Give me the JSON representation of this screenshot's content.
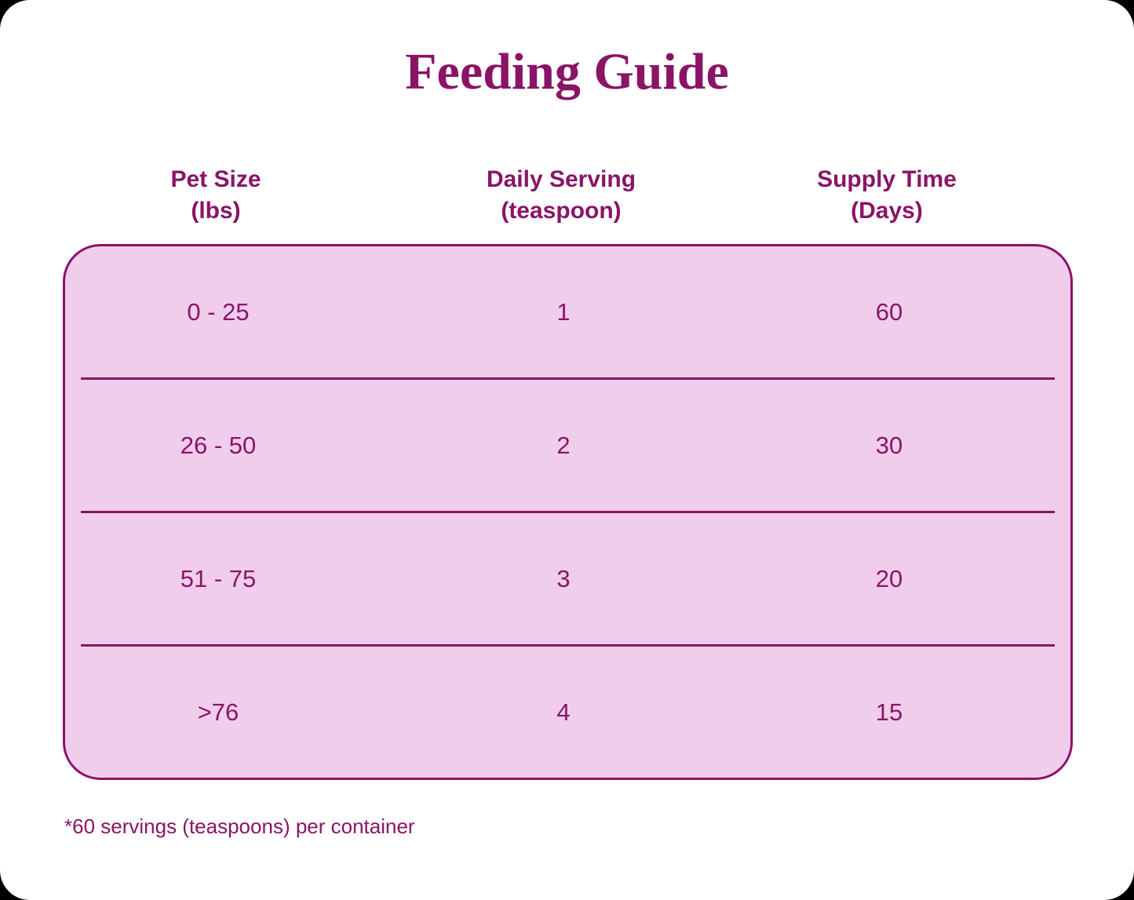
{
  "title": "Feeding Guide",
  "colors": {
    "accent": "#8A1466",
    "table_fill": "#F1CDEC",
    "card_bg": "#FFFFFF"
  },
  "table": {
    "columns": [
      {
        "line1": "Pet Size",
        "line2": "(lbs)"
      },
      {
        "line1": "Daily Serving",
        "line2": "(teaspoon)"
      },
      {
        "line1": "Supply Time",
        "line2": "(Days)"
      }
    ],
    "rows": [
      {
        "pet_size": "0 - 25",
        "daily_serving": "1",
        "supply_time": "60"
      },
      {
        "pet_size": "26 - 50",
        "daily_serving": "2",
        "supply_time": "30"
      },
      {
        "pet_size": "51 - 75",
        "daily_serving": "3",
        "supply_time": "20"
      },
      {
        "pet_size": ">76",
        "daily_serving": "4",
        "supply_time": "15"
      }
    ]
  },
  "footnote": "*60 servings (teaspoons) per container",
  "chart_data": {
    "type": "table",
    "title": "Feeding Guide",
    "columns": [
      "Pet Size (lbs)",
      "Daily Serving (teaspoon)",
      "Supply Time (Days)"
    ],
    "rows": [
      [
        "0 - 25",
        1,
        60
      ],
      [
        "26 - 50",
        2,
        30
      ],
      [
        "51 - 75",
        3,
        20
      ],
      [
        ">76",
        4,
        15
      ]
    ],
    "footnote": "*60 servings (teaspoons) per container"
  }
}
